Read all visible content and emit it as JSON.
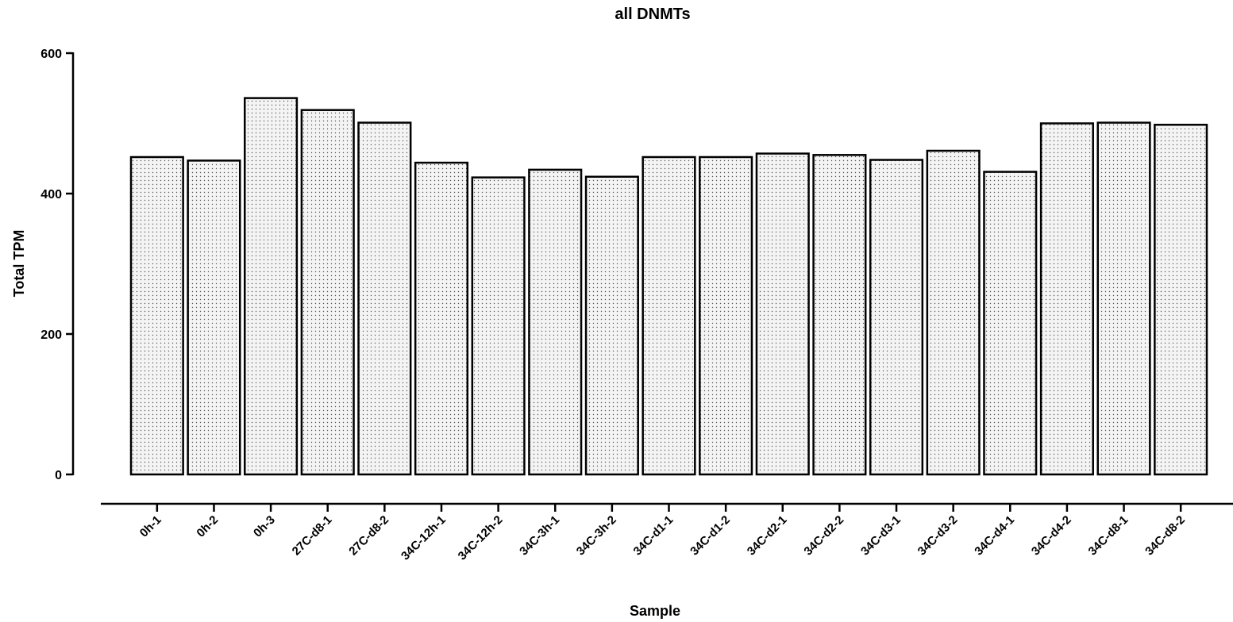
{
  "chart_data": {
    "type": "bar",
    "title": "all DNMTs",
    "xlabel": "Sample",
    "ylabel": "Total TPM",
    "ylim": [
      0,
      600
    ],
    "yticks": [
      0,
      200,
      400,
      600
    ],
    "grid": false,
    "legend": "none",
    "bar_fill": "#f4f4f4",
    "bar_stroke": "#000000",
    "bar_pattern": "dots",
    "categories": [
      "0h-1",
      "0h-2",
      "0h-3",
      "27C-d8-1",
      "27C-d8-2",
      "34C-12h-1",
      "34C-12h-2",
      "34C-3h-1",
      "34C-3h-2",
      "34C-d1-1",
      "34C-d1-2",
      "34C-d2-1",
      "34C-d2-2",
      "34C-d3-1",
      "34C-d3-2",
      "34C-d4-1",
      "34C-d4-2",
      "34C-d8-1",
      "34C-d8-2"
    ],
    "values": [
      452,
      447,
      536,
      519,
      501,
      444,
      423,
      434,
      424,
      452,
      452,
      457,
      455,
      448,
      461,
      431,
      500,
      501,
      498
    ]
  }
}
